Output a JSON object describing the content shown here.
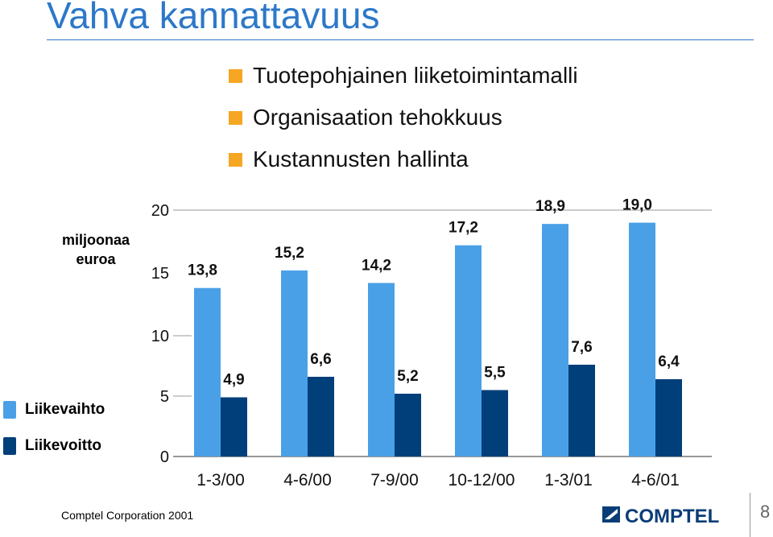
{
  "slide": {
    "title": "Vahva kannattavuus",
    "bullets": [
      "Tuotepohjainen liiketoimintamalli",
      "Organisaation tehokkuus",
      "Kustannusten hallinta"
    ],
    "footer": "Comptel Corporation 2001",
    "page_number": "8",
    "logo_text": "COMPTEL"
  },
  "colors": {
    "title": "#2d78c8",
    "bullet": "#f5a623",
    "liikevaihto": "#4aa0e6",
    "liikevoitto": "#003f7a"
  },
  "chart_data": {
    "type": "bar",
    "title": "",
    "ylabel": "miljoonaa euroa",
    "xlabel": "",
    "categories": [
      "1-3/00",
      "4-6/00",
      "7-9/00",
      "10-12/00",
      "1-3/01",
      "4-6/01"
    ],
    "series": [
      {
        "name": "Liikevaihto",
        "values": [
          13.8,
          15.2,
          14.2,
          17.2,
          18.9,
          19.0
        ],
        "labels": [
          "13,8",
          "15,2",
          "14,2",
          "17,2",
          "18,9",
          "19,0"
        ]
      },
      {
        "name": "Liikevoitto",
        "values": [
          4.9,
          6.6,
          5.2,
          5.5,
          7.6,
          6.4
        ],
        "labels": [
          "4,9",
          "6,6",
          "5,2",
          "5,5",
          "7,6",
          "6,4"
        ]
      }
    ],
    "yticks": [
      "0",
      "5",
      "10",
      "15",
      "20"
    ],
    "ytick_values": [
      0,
      5,
      10,
      15,
      20
    ],
    "ylim": [
      0,
      20
    ],
    "legend": "left"
  }
}
